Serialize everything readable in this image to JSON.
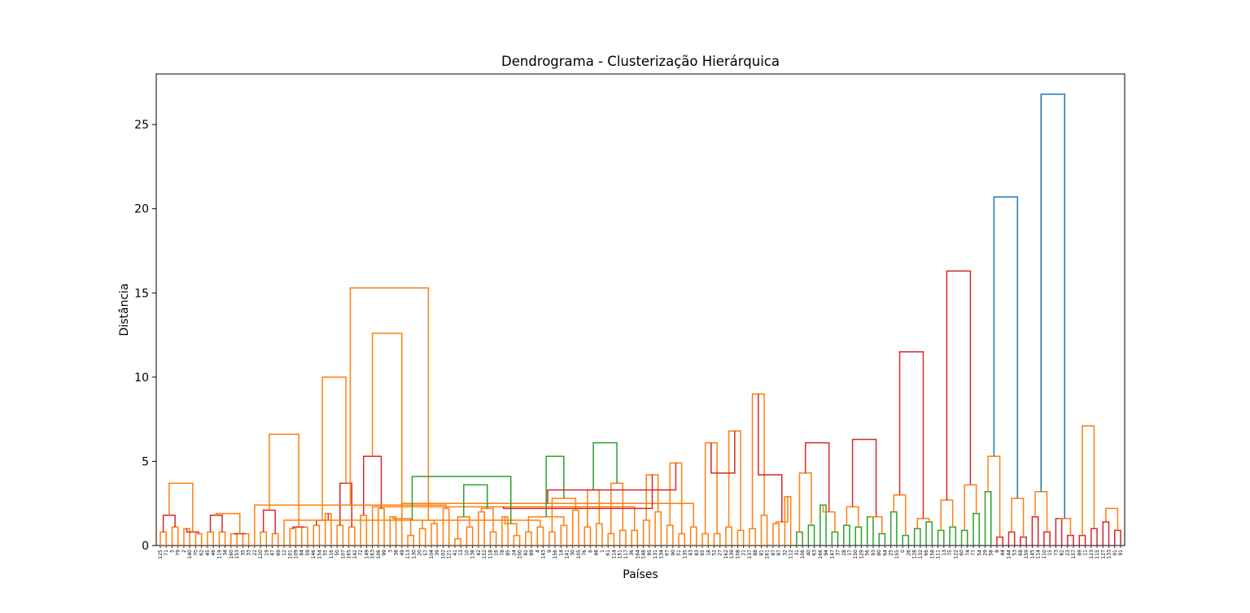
{
  "chart_data": {
    "type": "dendrogram",
    "title": "Dendrograma - Clusterização Hierárquica",
    "xlabel": "Países",
    "ylabel": "Distância",
    "ylim": [
      0,
      28
    ],
    "yticks": [
      0,
      5,
      10,
      15,
      20,
      25
    ],
    "grid": false,
    "legend": "none",
    "colors": {
      "C1": "#ff7f0e",
      "C2": "#2ca02c",
      "C3": "#d62728",
      "C0": "#1f77b4"
    },
    "leaves": [
      "125",
      "71",
      "5",
      "79",
      "2",
      "140",
      "70",
      "62",
      "45",
      "46",
      "119",
      "34",
      "160",
      "153",
      "35",
      "33",
      "22",
      "120",
      "19",
      "47",
      "69",
      "12",
      "101",
      "109",
      "84",
      "59",
      "146",
      "154",
      "55",
      "116",
      "50",
      "107",
      "165",
      "142",
      "72",
      "149",
      "163",
      "106",
      "99",
      "3",
      "38",
      "49",
      "113",
      "130",
      "20",
      "57",
      "104",
      "39",
      "102",
      "121",
      "41",
      "13",
      "10",
      "138",
      "42",
      "152",
      "118",
      "16",
      "78",
      "85",
      "24",
      "100",
      "92",
      "89",
      "4",
      "143",
      "9",
      "156",
      "14",
      "141",
      "30",
      "105",
      "76",
      "6",
      "48",
      "1",
      "61",
      "114",
      "151",
      "117",
      "36",
      "164",
      "148",
      "95",
      "131",
      "134",
      "67",
      "90",
      "51",
      "135",
      "43",
      "83",
      "65",
      "18",
      "52",
      "27",
      "162",
      "139",
      "108",
      "21",
      "137",
      "88",
      "81",
      "161",
      "87",
      "97",
      "32",
      "112",
      "31",
      "106",
      "40",
      "63",
      "166",
      "94",
      "147",
      "37",
      "28",
      "17",
      "150",
      "129",
      "56",
      "93",
      "80",
      "64",
      "25",
      "155",
      "0",
      "26",
      "128",
      "132",
      "66",
      "158",
      "111",
      "13",
      "75",
      "122",
      "60",
      "74",
      "77",
      "54",
      "29",
      "58",
      "8",
      "44",
      "144",
      "53",
      "68",
      "159",
      "145",
      "114",
      "110",
      "15",
      "73",
      "82",
      "23",
      "157",
      "89",
      "11",
      "123",
      "115",
      "127",
      "133",
      "91",
      "91"
    ],
    "merges": [
      {
        "a": 0,
        "b": 1,
        "h": 0.8,
        "c": "C1"
      },
      {
        "a": 2,
        "b": 3,
        "h": 1.1,
        "c": "C1"
      },
      {
        "a": 4,
        "b": 5,
        "h": 1.0,
        "c": "C1"
      },
      {
        "a": 6,
        "b": 7,
        "h": 0.7,
        "c": "C1"
      },
      {
        "a": 8,
        "b": 9,
        "h": 0.8,
        "c": "C1"
      },
      {
        "a": 10,
        "b": 11,
        "h": 0.8,
        "c": "C1"
      },
      {
        "a": 12,
        "b": 13,
        "h": 0.7,
        "c": "C1"
      },
      {
        "a": 14,
        "b": 15,
        "h": 0.7,
        "c": "C1"
      },
      {
        "a": 17,
        "b": 18,
        "h": 0.8,
        "c": "C1"
      },
      {
        "a": 19,
        "b": 20,
        "h": 0.7,
        "c": "C1"
      },
      {
        "a": 22,
        "b": 23,
        "h": 1.0,
        "c": "C1"
      },
      {
        "a": 24,
        "b": 25,
        "h": 1.1,
        "c": "C1"
      },
      {
        "a": 26,
        "b": 27,
        "h": 1.2,
        "c": "C1"
      },
      {
        "a": 28,
        "b": 29,
        "h": 1.9,
        "c": "C1"
      },
      {
        "a": 30,
        "b": 31,
        "h": 1.2,
        "c": "C1"
      },
      {
        "a": 32,
        "b": 33,
        "h": 1.1,
        "c": "C1"
      },
      {
        "a": 34,
        "b": 35,
        "h": 1.8,
        "c": "C1"
      },
      {
        "a": 37,
        "b": 38,
        "h": 2.2,
        "c": "C1"
      },
      {
        "a": 39,
        "b": 40,
        "h": 1.7,
        "c": "C1"
      },
      {
        "a": 42,
        "b": 43,
        "h": 0.6,
        "c": "C1"
      },
      {
        "a": 44,
        "b": 45,
        "h": 1.0,
        "c": "C1"
      },
      {
        "a": 46,
        "b": 47,
        "h": 1.3,
        "c": "C1"
      },
      {
        "a": 48,
        "b": 49,
        "h": 2.2,
        "c": "C1"
      },
      {
        "a": 50,
        "b": 51,
        "h": 0.4,
        "c": "C1"
      },
      {
        "a": 52,
        "b": 53,
        "h": 1.1,
        "c": "C1"
      },
      {
        "a": 54,
        "b": 55,
        "h": 2.0,
        "c": "C1"
      },
      {
        "a": 56,
        "b": 57,
        "h": 0.8,
        "c": "C1"
      },
      {
        "a": 58,
        "b": 59,
        "h": 1.7,
        "c": "C1"
      },
      {
        "a": 60,
        "b": 61,
        "h": 0.6,
        "c": "C1"
      },
      {
        "a": 62,
        "b": 63,
        "h": 0.8,
        "c": "C1"
      },
      {
        "a": 64,
        "b": 65,
        "h": 1.1,
        "c": "C1"
      },
      {
        "a": 66,
        "b": 67,
        "h": 0.8,
        "c": "C1"
      },
      {
        "a": 68,
        "b": 69,
        "h": 1.2,
        "c": "C1"
      },
      {
        "a": 70,
        "b": 71,
        "h": 2.1,
        "c": "C1"
      },
      {
        "a": 72,
        "b": 73,
        "h": 1.1,
        "c": "C1"
      },
      {
        "a": 74,
        "b": 75,
        "h": 1.3,
        "c": "C1"
      },
      {
        "a": 76,
        "b": 77,
        "h": 0.7,
        "c": "C1"
      },
      {
        "a": 78,
        "b": 79,
        "h": 0.9,
        "c": "C1"
      },
      {
        "a": 80,
        "b": 81,
        "h": 0.9,
        "c": "C1"
      },
      {
        "a": 82,
        "b": 83,
        "h": 1.5,
        "c": "C1"
      },
      {
        "a": 84,
        "b": 85,
        "h": 2.0,
        "c": "C1"
      },
      {
        "a": 86,
        "b": 87,
        "h": 1.2,
        "c": "C1"
      },
      {
        "a": 88,
        "b": 89,
        "h": 0.7,
        "c": "C1"
      },
      {
        "a": 90,
        "b": 91,
        "h": 1.1,
        "c": "C1"
      },
      {
        "a": 92,
        "b": 93,
        "h": 0.7,
        "c": "C1"
      },
      {
        "a": 94,
        "b": 95,
        "h": 0.7,
        "c": "C1"
      },
      {
        "a": 96,
        "b": 97,
        "h": 1.1,
        "c": "C1"
      },
      {
        "a": 98,
        "b": 99,
        "h": 0.9,
        "c": "C1"
      },
      {
        "a": 100,
        "b": 101,
        "h": 1.0,
        "c": "C1"
      },
      {
        "a": 102,
        "b": 103,
        "h": 1.8,
        "c": "C1"
      },
      {
        "a": 104,
        "b": 105,
        "h": 1.3,
        "c": "C1"
      },
      {
        "a": 106,
        "b": 107,
        "h": 2.9,
        "c": "C1"
      },
      {
        "a": 108,
        "b": 109,
        "h": 0.8,
        "c": "C2"
      },
      {
        "a": 110,
        "b": 111,
        "h": 1.2,
        "c": "C2"
      },
      {
        "a": 112,
        "b": 113,
        "h": 2.4,
        "c": "C2"
      },
      {
        "a": 114,
        "b": 115,
        "h": 0.8,
        "c": "C2"
      },
      {
        "a": 116,
        "b": 117,
        "h": 1.2,
        "c": "C2"
      },
      {
        "a": 118,
        "b": 119,
        "h": 1.1,
        "c": "C2"
      },
      {
        "a": 120,
        "b": 121,
        "h": 1.7,
        "c": "C2"
      },
      {
        "a": 122,
        "b": 123,
        "h": 0.7,
        "c": "C2"
      },
      {
        "a": 124,
        "b": 125,
        "h": 2.0,
        "c": "C2"
      },
      {
        "a": 126,
        "b": 127,
        "h": 0.6,
        "c": "C2"
      },
      {
        "a": 128,
        "b": 129,
        "h": 1.0,
        "c": "C2"
      },
      {
        "a": 130,
        "b": 131,
        "h": 1.4,
        "c": "C2"
      },
      {
        "a": 132,
        "b": 133,
        "h": 0.9,
        "c": "C2"
      },
      {
        "a": 134,
        "b": 135,
        "h": 1.1,
        "c": "C2"
      },
      {
        "a": 136,
        "b": 137,
        "h": 0.9,
        "c": "C2"
      },
      {
        "a": 138,
        "b": 139,
        "h": 1.9,
        "c": "C2"
      },
      {
        "a": 140,
        "b": 141,
        "h": 3.2,
        "c": "C2"
      },
      {
        "a": 142,
        "b": 143,
        "h": 0.5,
        "c": "C3"
      },
      {
        "a": 144,
        "b": 145,
        "h": 0.8,
        "c": "C3"
      },
      {
        "a": 146,
        "b": 147,
        "h": 0.5,
        "c": "C3"
      },
      {
        "a": 148,
        "b": 149,
        "h": 1.7,
        "c": "C3"
      },
      {
        "a": 150,
        "b": 151,
        "h": 0.8,
        "c": "C3"
      },
      {
        "a": 152,
        "b": 153,
        "h": 1.6,
        "c": "C3"
      },
      {
        "a": 154,
        "b": 155,
        "h": 0.6,
        "c": "C3"
      },
      {
        "a": 156,
        "b": 157,
        "h": 0.6,
        "c": "C3"
      },
      {
        "a": 158,
        "b": 159,
        "h": 1.0,
        "c": "C3"
      },
      {
        "a": 160,
        "b": 161,
        "h": 1.4,
        "c": "C3"
      },
      {
        "a": 162,
        "b": 163,
        "h": 0.9,
        "c": "C3"
      },
      {
        "a": 164,
        "b": 165,
        "h": 1.8,
        "c": "C3"
      },
      {
        "a": 166,
        "b": 167,
        "h": 0.8,
        "c": "C3"
      },
      {
        "a": 168,
        "b": 169,
        "h": 1.8,
        "c": "C3"
      },
      {
        "a": 170,
        "b": 171,
        "h": 0.7,
        "c": "C3"
      },
      {
        "a": 172,
        "b": 173,
        "h": 2.1,
        "c": "C3"
      },
      {
        "a": 174,
        "b": 175,
        "h": 1.1,
        "c": "C3"
      },
      {
        "a": 176,
        "b": 177,
        "h": 1.5,
        "c": "C3"
      },
      {
        "a": 178,
        "b": 179,
        "h": 3.7,
        "c": "C3"
      },
      {
        "a": 180,
        "b": 181,
        "h": 5.3,
        "c": "C3"
      },
      {
        "a": 182,
        "b": 183,
        "h": 1.6,
        "c": "C1"
      },
      {
        "a": 184,
        "b": 185,
        "h": 1.5,
        "c": "C1"
      },
      {
        "a": 186,
        "b": 16,
        "h": 2.4,
        "c": "C1"
      },
      {
        "a": 187,
        "b": 188,
        "h": 1.7,
        "c": "C1"
      },
      {
        "a": 189,
        "b": 190,
        "h": 2.2,
        "c": "C1"
      },
      {
        "a": 191,
        "b": 192,
        "h": 1.3,
        "c": "C1"
      },
      {
        "a": 194,
        "b": 21,
        "h": 1.5,
        "c": "C1"
      },
      {
        "a": 193,
        "b": 196,
        "h": 1.7,
        "c": "C1"
      },
      {
        "a": 195,
        "b": 197,
        "h": 2.8,
        "c": "C1"
      },
      {
        "a": 198,
        "b": 199,
        "h": 3.3,
        "c": "C1"
      },
      {
        "a": 200,
        "b": 201,
        "h": 3.7,
        "c": "C1"
      },
      {
        "a": 202,
        "b": 36,
        "h": 2.3,
        "c": "C1"
      },
      {
        "a": 203,
        "b": 204,
        "h": 4.2,
        "c": "C1"
      },
      {
        "a": 205,
        "b": 206,
        "h": 4.9,
        "c": "C1"
      },
      {
        "a": 207,
        "b": 41,
        "h": 2.5,
        "c": "C1"
      },
      {
        "a": 208,
        "b": 209,
        "h": 6.1,
        "c": "C1"
      },
      {
        "a": 210,
        "b": 211,
        "h": 6.8,
        "c": "C1"
      },
      {
        "a": 212,
        "b": 213,
        "h": 9.0,
        "c": "C1"
      },
      {
        "a": 214,
        "b": 215,
        "h": 1.4,
        "c": "C1"
      },
      {
        "a": 216,
        "b": 217,
        "h": 4.3,
        "c": "C1"
      },
      {
        "a": 218,
        "b": 219,
        "h": 2.0,
        "c": "C1"
      },
      {
        "a": 220,
        "b": 221,
        "h": 2.3,
        "c": "C1"
      },
      {
        "a": 222,
        "b": 223,
        "h": 1.7,
        "c": "C1"
      },
      {
        "a": 224,
        "b": 225,
        "h": 3.0,
        "c": "C1"
      },
      {
        "a": 226,
        "b": 227,
        "h": 1.6,
        "c": "C1"
      },
      {
        "a": 228,
        "b": 229,
        "h": 2.7,
        "c": "C1"
      },
      {
        "a": 230,
        "b": 231,
        "h": 3.6,
        "c": "C1"
      },
      {
        "a": 232,
        "b": 233,
        "h": 5.3,
        "c": "C1"
      },
      {
        "a": 234,
        "b": 235,
        "h": 2.8,
        "c": "C1"
      },
      {
        "a": 236,
        "b": 237,
        "h": 3.2,
        "c": "C1"
      },
      {
        "a": 238,
        "b": 239,
        "h": 1.6,
        "c": "C1"
      },
      {
        "a": 240,
        "b": 241,
        "h": 7.1,
        "c": "C1"
      },
      {
        "a": 242,
        "b": 243,
        "h": 2.2,
        "c": "C1"
      },
      {
        "a": 244,
        "b": 245,
        "h": 3.7,
        "c": "C1"
      },
      {
        "a": 246,
        "b": 247,
        "h": 1.9,
        "c": "C1"
      },
      {
        "a": 248,
        "b": 249,
        "h": 6.6,
        "c": "C1"
      },
      {
        "a": 250,
        "b": 251,
        "h": 10.0,
        "c": "C1"
      },
      {
        "a": 252,
        "b": 253,
        "h": 12.6,
        "c": "C1"
      },
      {
        "a": 254,
        "b": 255,
        "h": 15.3,
        "c": "C1"
      },
      {
        "a": 256,
        "b": 257,
        "h": 3.6,
        "c": "C2"
      },
      {
        "a": 258,
        "b": 259,
        "h": 4.1,
        "c": "C2"
      },
      {
        "a": 260,
        "b": 261,
        "h": 5.3,
        "c": "C2"
      },
      {
        "a": 262,
        "b": 263,
        "h": 6.1,
        "c": "C2"
      },
      {
        "a": 264,
        "b": 265,
        "h": 2.2,
        "c": "C3"
      },
      {
        "a": 266,
        "b": 267,
        "h": 3.3,
        "c": "C3"
      },
      {
        "a": 268,
        "b": 269,
        "h": 4.3,
        "c": "C3"
      },
      {
        "a": 270,
        "b": 271,
        "h": 4.2,
        "c": "C3"
      },
      {
        "a": 272,
        "b": 273,
        "h": 6.1,
        "c": "C3"
      },
      {
        "a": 274,
        "b": 275,
        "h": 6.3,
        "c": "C3"
      },
      {
        "a": 276,
        "b": 277,
        "h": 11.5,
        "c": "C3"
      },
      {
        "a": 278,
        "b": 279,
        "h": 16.3,
        "c": "C3"
      },
      {
        "a": 280,
        "b": 281,
        "h": 20.7,
        "c": "C0"
      },
      {
        "a": 282,
        "b": 283,
        "h": 26.8,
        "c": "C0"
      }
    ]
  }
}
